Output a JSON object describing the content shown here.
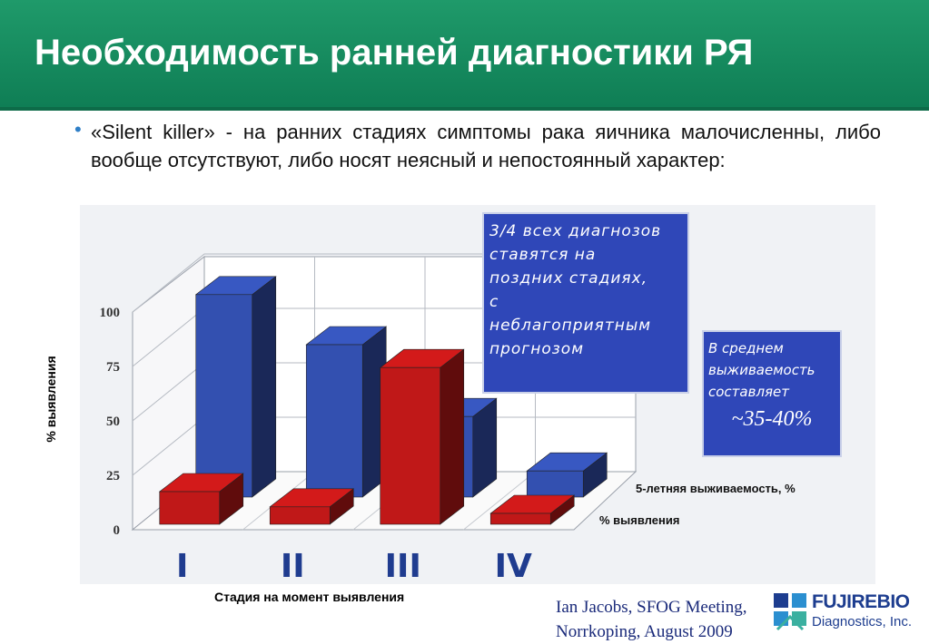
{
  "title": "Необходимость ранней диагностики РЯ",
  "bullet": "«Silent killer» - на ранних стадиях симптомы рака яичника малочисленны, либо вообще отсутствуют, либо носят неясный и непостоянный характер:",
  "callout_main": [
    "3/4 всех диагнозов",
    "ставятся на",
    "поздних стадиях,",
    "с",
    "неблагоприятным",
    "прогнозом"
  ],
  "callout_survival": {
    "lines": [
      "В среднем",
      "выживаемость",
      "составляет"
    ],
    "value": "~35-40%"
  },
  "source": [
    "Ian Jacobs, SFOG Meeting,",
    "Norrkoping, August 2009"
  ],
  "logo": {
    "name": "FUJIREBIO",
    "sub": "Diagnostics, Inc."
  },
  "colors": {
    "header": "#13875c",
    "blue": "#3350b0",
    "red": "#c01818",
    "callout": "#2f47b8"
  },
  "chart_data": {
    "type": "bar",
    "style": "3d",
    "categories": [
      "I",
      "II",
      "III",
      "IV"
    ],
    "series": [
      {
        "name": "5-летняя выживаемость, %",
        "values": [
          93,
          70,
          37,
          12
        ],
        "color": "#3350b0"
      },
      {
        "name": "% выявления",
        "values": [
          15,
          8,
          72,
          5
        ],
        "color": "#c01818"
      }
    ],
    "ylabel": "% выявления",
    "xlabel": "Стадия на момент выявления",
    "yticks": [
      0,
      25,
      50,
      75,
      100
    ],
    "ylim": [
      0,
      100
    ],
    "grid": true
  }
}
